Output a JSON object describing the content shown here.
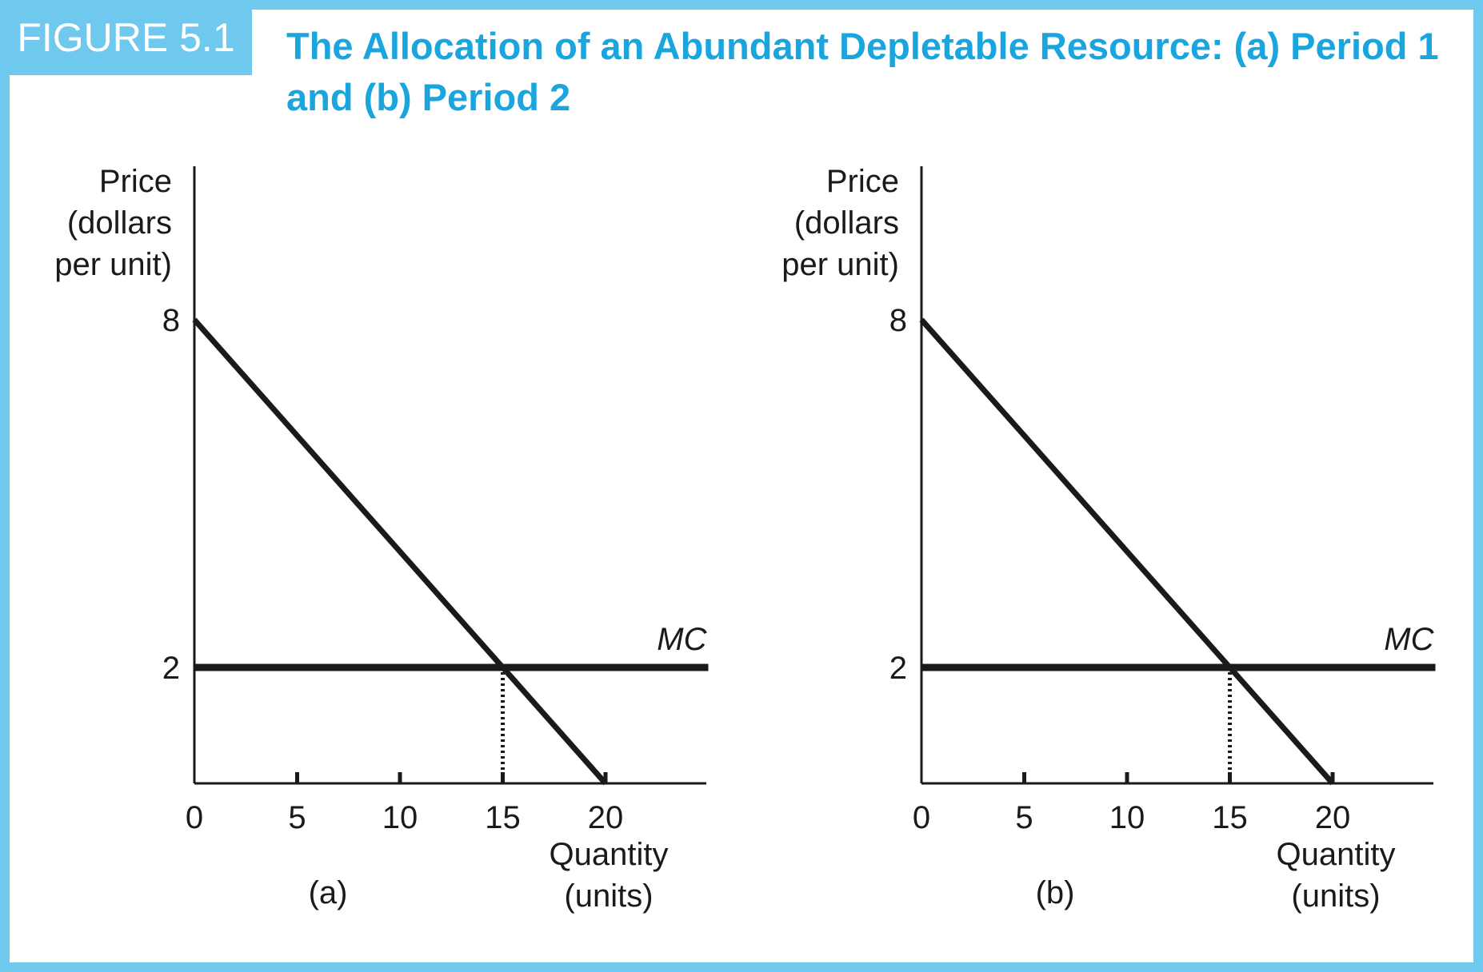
{
  "header": {
    "figure_label": "FIGURE 5.1",
    "title": "The Allocation of an Abundant Depletable Resource: (a) Period 1 and (b) Period 2"
  },
  "colors": {
    "frame": "#6fc8ee",
    "label_bg": "#6fc8ee",
    "title_text": "#1ba5de",
    "ink": "#1a1a1a"
  },
  "chart_data": [
    {
      "type": "line",
      "panel_label": "(a)",
      "ylabel": [
        "Price",
        "(dollars",
        "per unit)"
      ],
      "xlabel": [
        "Quantity",
        "(units)"
      ],
      "xlim": [
        0,
        25
      ],
      "ylim": [
        0,
        8
      ],
      "x_ticks": [
        0,
        5,
        10,
        15,
        20
      ],
      "y_ticks": [
        2,
        8
      ],
      "grid": false,
      "series": [
        {
          "label": "",
          "points": [
            [
              0,
              8
            ],
            [
              20,
              0
            ]
          ]
        },
        {
          "label": "MC",
          "points": [
            [
              0,
              2
            ],
            [
              25,
              2
            ]
          ]
        }
      ],
      "annotations": [
        {
          "type": "dotted-drop-line",
          "x": 15,
          "y_from": 0,
          "y_to": 2
        }
      ]
    },
    {
      "type": "line",
      "panel_label": "(b)",
      "ylabel": [
        "Price",
        "(dollars",
        "per unit)"
      ],
      "xlabel": [
        "Quantity",
        "(units)"
      ],
      "xlim": [
        0,
        25
      ],
      "ylim": [
        0,
        8
      ],
      "x_ticks": [
        0,
        5,
        10,
        15,
        20
      ],
      "y_ticks": [
        2,
        8
      ],
      "grid": false,
      "series": [
        {
          "label": "",
          "points": [
            [
              0,
              8
            ],
            [
              20,
              0
            ]
          ]
        },
        {
          "label": "MC",
          "points": [
            [
              0,
              2
            ],
            [
              25,
              2
            ]
          ]
        }
      ],
      "annotations": [
        {
          "type": "dotted-drop-line",
          "x": 15,
          "y_from": 0,
          "y_to": 2
        }
      ]
    }
  ]
}
